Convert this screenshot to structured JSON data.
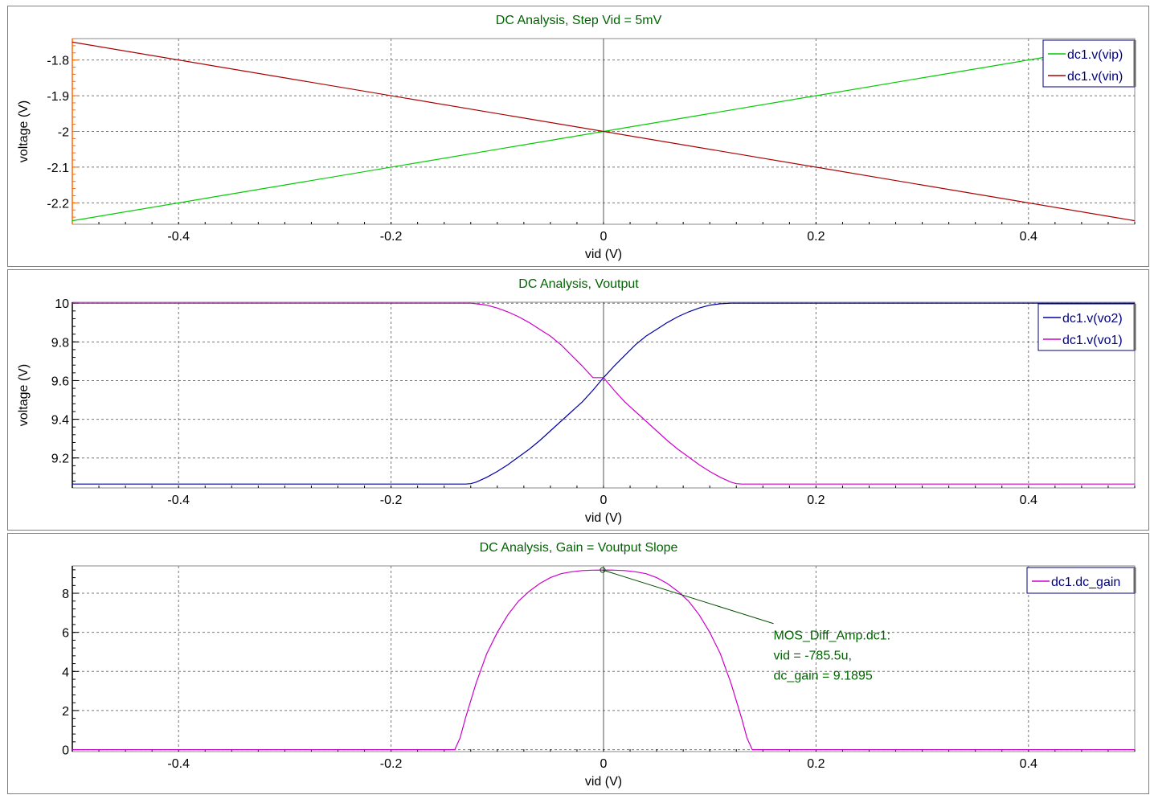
{
  "chart_data": [
    {
      "type": "line",
      "title": "DC Analysis, Step Vid = 5mV",
      "xlabel": "vid (V)",
      "ylabel": "voltage (V)",
      "ylabel_color": "#ff6600",
      "ytick_color": "#ff6600",
      "xlim": [
        -0.5,
        0.5
      ],
      "ylim": [
        -2.26,
        -1.74
      ],
      "xticks": [
        -0.4,
        -0.2,
        0,
        0.2,
        0.4
      ],
      "xtick_labels": [
        "-0.4",
        "-0.2",
        "0",
        "0.2",
        "0.4"
      ],
      "yticks": [
        -2.2,
        -2.1,
        -2.0,
        -1.9,
        -1.8
      ],
      "ytick_labels": [
        "-2.2",
        "-2.1",
        "-2",
        "-1.9",
        "-1.8"
      ],
      "grid": true,
      "legend_position": "top-right",
      "series": [
        {
          "name": "dc1.v(vip)",
          "color": "#00cc00",
          "x": [
            -0.5,
            0.5
          ],
          "y": [
            -2.25,
            -1.75
          ]
        },
        {
          "name": "dc1.v(vin)",
          "color": "#aa0000",
          "x": [
            -0.5,
            0.5
          ],
          "y": [
            -1.75,
            -2.25
          ]
        }
      ]
    },
    {
      "type": "line",
      "title": "DC Analysis, Voutput",
      "xlabel": "vid (V)",
      "ylabel": "voltage (V)",
      "ylabel_color": "#000000",
      "ytick_color": "#000000",
      "xlim": [
        -0.5,
        0.5
      ],
      "ylim": [
        9.045,
        10.005
      ],
      "xticks": [
        -0.4,
        -0.2,
        0,
        0.2,
        0.4
      ],
      "xtick_labels": [
        "-0.4",
        "-0.2",
        "0",
        "0.2",
        "0.4"
      ],
      "yticks": [
        9.2,
        9.4,
        9.6,
        9.8,
        10.0
      ],
      "ytick_labels": [
        "9.2",
        "9.4",
        "9.6",
        "9.8",
        "10"
      ],
      "grid": true,
      "legend_position": "top-right",
      "series": [
        {
          "name": "dc1.v(vo2)",
          "color": "#0000aa",
          "x": [
            -0.5,
            -0.13,
            -0.125,
            -0.12,
            -0.11,
            -0.1,
            -0.09,
            -0.08,
            -0.07,
            -0.06,
            -0.05,
            -0.04,
            -0.03,
            -0.02,
            -0.01,
            0,
            0.01,
            0.02,
            0.03,
            0.04,
            0.05,
            0.06,
            0.07,
            0.08,
            0.09,
            0.1,
            0.11,
            0.12,
            0.125,
            0.13,
            0.5
          ],
          "y": [
            9.065,
            9.065,
            9.067,
            9.075,
            9.1,
            9.13,
            9.165,
            9.205,
            9.245,
            9.29,
            9.34,
            9.39,
            9.44,
            9.49,
            9.55,
            9.615,
            9.675,
            9.73,
            9.785,
            9.83,
            9.865,
            9.9,
            9.93,
            9.955,
            9.975,
            9.99,
            9.997,
            10.0,
            10.0,
            10.0,
            10.0
          ]
        },
        {
          "name": "dc1.v(vo1)",
          "color": "#cc00cc",
          "x": [
            -0.5,
            -0.13,
            -0.125,
            -0.12,
            -0.11,
            -0.1,
            -0.09,
            -0.08,
            -0.07,
            -0.06,
            -0.05,
            -0.04,
            -0.03,
            -0.02,
            -0.01,
            0,
            0.01,
            0.02,
            0.03,
            0.04,
            0.05,
            0.06,
            0.07,
            0.08,
            0.09,
            0.1,
            0.11,
            0.12,
            0.125,
            0.13,
            0.5
          ],
          "y": [
            10.0,
            10.0,
            10.0,
            9.997,
            9.99,
            9.975,
            9.955,
            9.93,
            9.9,
            9.865,
            9.83,
            9.785,
            9.73,
            9.675,
            9.615,
            9.615,
            9.55,
            9.49,
            9.44,
            9.39,
            9.34,
            9.29,
            9.245,
            9.205,
            9.165,
            9.13,
            9.1,
            9.075,
            9.067,
            9.065,
            9.065
          ]
        }
      ]
    },
    {
      "type": "line",
      "title": "DC Analysis,  Gain = Voutput Slope",
      "xlabel": "vid (V)",
      "ylabel": "",
      "ylabel_color": "#000000",
      "ytick_color": "#000000",
      "xlim": [
        -0.5,
        0.5
      ],
      "ylim": [
        -0.1,
        9.4
      ],
      "xticks": [
        -0.4,
        -0.2,
        0,
        0.2,
        0.4
      ],
      "xtick_labels": [
        "-0.4",
        "-0.2",
        "0",
        "0.2",
        "0.4"
      ],
      "yticks": [
        0,
        2,
        4,
        6,
        8
      ],
      "ytick_labels": [
        "0",
        "2",
        "4",
        "6",
        "8"
      ],
      "grid": true,
      "legend_position": "top-right",
      "series": [
        {
          "name": "dc1.dc_gain",
          "color": "#cc00cc",
          "x": [
            -0.5,
            -0.14,
            -0.135,
            -0.13,
            -0.12,
            -0.11,
            -0.1,
            -0.09,
            -0.08,
            -0.07,
            -0.06,
            -0.05,
            -0.04,
            -0.03,
            -0.02,
            -0.01,
            0,
            0.01,
            0.02,
            0.03,
            0.04,
            0.05,
            0.06,
            0.07,
            0.08,
            0.09,
            0.1,
            0.11,
            0.12,
            0.13,
            0.135,
            0.14,
            0.5
          ],
          "y": [
            0,
            0,
            0.6,
            1.6,
            3.4,
            4.9,
            6.0,
            6.9,
            7.6,
            8.1,
            8.5,
            8.8,
            9.0,
            9.1,
            9.16,
            9.18,
            9.19,
            9.18,
            9.16,
            9.1,
            9.0,
            8.8,
            8.5,
            8.1,
            7.6,
            6.9,
            6.0,
            4.9,
            3.4,
            1.6,
            0.6,
            0,
            0
          ]
        }
      ],
      "marker": {
        "x": -0.0007855,
        "y": 9.1895
      },
      "annotation": {
        "lines": [
          "MOS_Diff_Amp.dc1:",
          "vid = -785.5u,",
          "dc_gain = 9.1895"
        ],
        "anchor_x": 0.16,
        "anchor_y": 6.45
      }
    }
  ]
}
